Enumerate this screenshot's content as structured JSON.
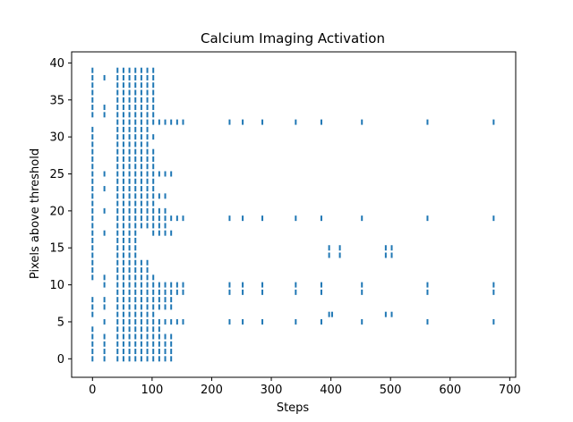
{
  "chart_data": {
    "type": "scatter",
    "marker": "vertical-tick",
    "title": "Calcium Imaging Activation",
    "xlabel": "Steps",
    "ylabel": "Pixels above threshold",
    "xlim": [
      -35,
      710
    ],
    "ylim": [
      -2.5,
      41.5
    ],
    "xticks": [
      0,
      100,
      200,
      300,
      400,
      500,
      600,
      700
    ],
    "yticks": [
      0,
      5,
      10,
      15,
      20,
      25,
      30,
      35,
      40
    ],
    "grid": false,
    "color": "#1f77b4",
    "series": [
      {
        "points": [
          {
            "x": 0,
            "y": [
              0,
              1,
              2,
              3,
              4,
              6,
              7,
              8,
              11,
              12,
              13,
              14,
              15,
              16,
              17,
              18,
              19,
              20,
              21,
              22,
              23,
              24,
              25,
              26,
              27,
              28,
              29,
              30,
              31,
              33,
              34,
              35,
              36,
              37,
              38,
              39
            ]
          },
          {
            "x": 20,
            "y": [
              0,
              1,
              2,
              3,
              5,
              7,
              8,
              10,
              11,
              17,
              20,
              23,
              25,
              33,
              34,
              38
            ]
          },
          {
            "x": 42,
            "y": [
              0,
              1,
              2,
              3,
              4,
              5,
              6,
              7,
              8,
              9,
              10,
              11,
              12,
              13,
              14,
              15,
              16,
              17,
              18,
              19,
              20,
              21,
              22,
              23,
              24,
              25,
              26,
              27,
              28,
              29,
              30,
              31,
              32,
              33,
              34,
              35,
              36,
              37,
              38,
              39
            ]
          },
          {
            "x": 52,
            "y": [
              0,
              1,
              2,
              3,
              4,
              5,
              6,
              7,
              8,
              9,
              10,
              11,
              12,
              13,
              14,
              15,
              16,
              17,
              18,
              19,
              20,
              21,
              22,
              23,
              24,
              25,
              26,
              27,
              28,
              29,
              30,
              31,
              32,
              33,
              34,
              35,
              36,
              37,
              38,
              39
            ]
          },
          {
            "x": 62,
            "y": [
              0,
              1,
              2,
              3,
              4,
              5,
              6,
              7,
              8,
              9,
              10,
              11,
              12,
              13,
              14,
              15,
              16,
              17,
              18,
              19,
              20,
              21,
              22,
              23,
              24,
              25,
              26,
              27,
              28,
              29,
              30,
              31,
              32,
              33,
              34,
              35,
              36,
              37,
              38,
              39
            ]
          },
          {
            "x": 72,
            "y": [
              0,
              1,
              2,
              3,
              4,
              5,
              6,
              7,
              8,
              9,
              10,
              11,
              12,
              13,
              14,
              15,
              16,
              17,
              18,
              19,
              20,
              21,
              22,
              23,
              24,
              25,
              26,
              27,
              28,
              29,
              30,
              31,
              32,
              33,
              34,
              35,
              36,
              37,
              38,
              39
            ]
          },
          {
            "x": 82,
            "y": [
              0,
              1,
              2,
              3,
              4,
              5,
              6,
              7,
              8,
              9,
              10,
              11,
              12,
              13,
              18,
              19,
              20,
              21,
              22,
              23,
              24,
              25,
              26,
              27,
              28,
              29,
              30,
              31,
              32,
              33,
              34,
              35,
              36,
              37,
              38,
              39
            ]
          },
          {
            "x": 92,
            "y": [
              0,
              1,
              2,
              3,
              4,
              5,
              6,
              7,
              8,
              9,
              10,
              11,
              12,
              13,
              18,
              19,
              20,
              21,
              22,
              23,
              24,
              25,
              26,
              27,
              28,
              29,
              30,
              31,
              32,
              33,
              34,
              35,
              36,
              37,
              38,
              39
            ]
          },
          {
            "x": 102,
            "y": [
              0,
              1,
              2,
              3,
              4,
              5,
              6,
              7,
              8,
              9,
              10,
              11,
              17,
              18,
              19,
              20,
              21,
              22,
              23,
              24,
              25,
              26,
              27,
              28,
              30,
              32,
              33,
              34,
              35,
              36,
              37,
              38,
              39
            ]
          },
          {
            "x": 112,
            "y": [
              0,
              1,
              2,
              3,
              4,
              5,
              7,
              8,
              9,
              10,
              17,
              18,
              19,
              20,
              22,
              25,
              32
            ]
          },
          {
            "x": 122,
            "y": [
              0,
              1,
              2,
              3,
              5,
              7,
              8,
              9,
              10,
              17,
              18,
              19,
              20,
              22,
              25,
              32
            ]
          },
          {
            "x": 132,
            "y": [
              0,
              1,
              2,
              3,
              5,
              7,
              8,
              9,
              10,
              17,
              19,
              25,
              32
            ]
          },
          {
            "x": 142,
            "y": [
              5,
              9,
              10,
              19,
              32
            ]
          },
          {
            "x": 152,
            "y": [
              5,
              9,
              10,
              19,
              32
            ]
          },
          {
            "x": 230,
            "y": [
              5,
              9,
              10,
              19,
              32
            ]
          },
          {
            "x": 252,
            "y": [
              5,
              9,
              10,
              19,
              32
            ]
          },
          {
            "x": 285,
            "y": [
              5,
              9,
              10,
              19,
              32
            ]
          },
          {
            "x": 341,
            "y": [
              5,
              9,
              10,
              19,
              32
            ]
          },
          {
            "x": 384,
            "y": [
              5,
              9,
              10,
              19,
              32
            ]
          },
          {
            "x": 397,
            "y": [
              6,
              14,
              15
            ]
          },
          {
            "x": 402,
            "y": [
              6
            ]
          },
          {
            "x": 415,
            "y": [
              14,
              15
            ]
          },
          {
            "x": 452,
            "y": [
              5,
              9,
              10,
              19,
              32
            ]
          },
          {
            "x": 492,
            "y": [
              6,
              14,
              15
            ]
          },
          {
            "x": 502,
            "y": [
              6,
              14,
              15
            ]
          },
          {
            "x": 562,
            "y": [
              5,
              9,
              10,
              19,
              32
            ]
          },
          {
            "x": 673,
            "y": [
              5,
              9,
              10,
              19,
              32
            ]
          }
        ]
      }
    ]
  }
}
